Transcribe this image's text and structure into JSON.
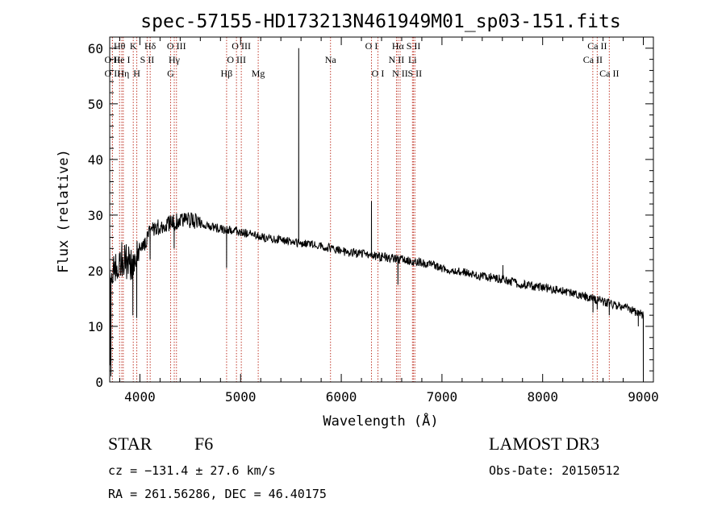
{
  "chart_data": {
    "type": "line",
    "title": "spec-57155-HD173213N461949M01_sp03-151.fits",
    "xlabel": "Wavelength (Å)",
    "ylabel": "Flux (relative)",
    "xlim": [
      3700,
      9100
    ],
    "ylim": [
      0,
      62
    ],
    "xticks": [
      4000,
      5000,
      6000,
      7000,
      8000,
      9000
    ],
    "yticks": [
      0,
      10,
      20,
      30,
      40,
      50,
      60
    ],
    "x_tick_labels": [
      "4000",
      "5000",
      "6000",
      "7000",
      "8000",
      "9000"
    ],
    "y_tick_labels": [
      "0",
      "10",
      "20",
      "30",
      "40",
      "50",
      "60"
    ],
    "grid": false,
    "series": [
      {
        "name": "flux",
        "continuum": [
          [
            3700,
            18
          ],
          [
            3750,
            21
          ],
          [
            3800,
            22
          ],
          [
            3850,
            22
          ],
          [
            3900,
            21
          ],
          [
            3950,
            22
          ],
          [
            4000,
            23
          ],
          [
            4050,
            25
          ],
          [
            4100,
            27
          ],
          [
            4200,
            28
          ],
          [
            4300,
            28.5
          ],
          [
            4400,
            29
          ],
          [
            4500,
            29
          ],
          [
            4600,
            28.5
          ],
          [
            4700,
            28
          ],
          [
            4800,
            27.5
          ],
          [
            5000,
            27
          ],
          [
            5200,
            26
          ],
          [
            5400,
            25.5
          ],
          [
            5600,
            25
          ],
          [
            5800,
            24.5
          ],
          [
            6000,
            23.5
          ],
          [
            6200,
            23
          ],
          [
            6400,
            22.5
          ],
          [
            6600,
            22
          ],
          [
            6800,
            21.5
          ],
          [
            7000,
            20.5
          ],
          [
            7200,
            19.8
          ],
          [
            7400,
            19
          ],
          [
            7600,
            18.5
          ],
          [
            7800,
            17.5
          ],
          [
            8000,
            17
          ],
          [
            8200,
            16.3
          ],
          [
            8400,
            15.5
          ],
          [
            8600,
            14.5
          ],
          [
            8800,
            13.5
          ],
          [
            8950,
            12.5
          ],
          [
            9000,
            12
          ]
        ],
        "features": [
          {
            "x": 3705,
            "y": 3
          },
          {
            "x": 3712,
            "y": 1
          },
          {
            "x": 3930,
            "y": 12
          },
          {
            "x": 3968,
            "y": 11.5
          },
          {
            "x": 4101,
            "y": 22
          },
          {
            "x": 4340,
            "y": 24
          },
          {
            "x": 4861,
            "y": 20.5
          },
          {
            "x": 5577,
            "y": 60
          },
          {
            "x": 6300,
            "y": 32.5
          },
          {
            "x": 6563,
            "y": 17.5
          },
          {
            "x": 7605,
            "y": 21
          },
          {
            "x": 8500,
            "y": 12.5
          },
          {
            "x": 8542,
            "y": 13
          },
          {
            "x": 8662,
            "y": 12
          },
          {
            "x": 8950,
            "y": 10
          },
          {
            "x": 9000,
            "y": 1
          }
        ],
        "noise_seed": 57155
      }
    ],
    "line_markers": [
      {
        "label": "O II",
        "x": 3727,
        "row": 1
      },
      {
        "label": "O II",
        "x": 3727,
        "row": 2
      },
      {
        "label": "Hθ",
        "x": 3798,
        "row": 0
      },
      {
        "label": "He I",
        "x": 3820,
        "row": 1
      },
      {
        "label": "Hη",
        "x": 3835,
        "row": 2
      },
      {
        "label": "K",
        "x": 3934,
        "row": 0
      },
      {
        "label": "S II",
        "x": 4072,
        "row": 1
      },
      {
        "label": "H",
        "x": 3969,
        "row": 2
      },
      {
        "label": "Hδ",
        "x": 4102,
        "row": 0
      },
      {
        "label": "O III",
        "x": 4363,
        "row": 0
      },
      {
        "label": "Hγ",
        "x": 4341,
        "row": 1
      },
      {
        "label": "G",
        "x": 4305,
        "row": 2
      },
      {
        "label": "Hβ",
        "x": 4861,
        "row": 2
      },
      {
        "label": "O III",
        "x": 5007,
        "row": 0
      },
      {
        "label": "O III",
        "x": 4959,
        "row": 1
      },
      {
        "label": "Mg",
        "x": 5175,
        "row": 2
      },
      {
        "label": "Na",
        "x": 5893,
        "row": 1
      },
      {
        "label": "O I",
        "x": 6300,
        "row": 0
      },
      {
        "label": "O I",
        "x": 6364,
        "row": 2
      },
      {
        "label": "Hα",
        "x": 6563,
        "row": 0
      },
      {
        "label": "N II",
        "x": 6548,
        "row": 1
      },
      {
        "label": "N II",
        "x": 6584,
        "row": 2
      },
      {
        "label": "S II",
        "x": 6717,
        "row": 0
      },
      {
        "label": "Li",
        "x": 6707,
        "row": 1
      },
      {
        "label": "S II",
        "x": 6731,
        "row": 2
      },
      {
        "label": "Ca II",
        "x": 8542,
        "row": 0
      },
      {
        "label": "Ca II",
        "x": 8498,
        "row": 1
      },
      {
        "label": "Ca II",
        "x": 8662,
        "row": 2
      }
    ],
    "marker_color": "#c0392b"
  },
  "info": {
    "object_class": "STAR",
    "spectral_type": "F6",
    "survey": "LAMOST DR3",
    "redshift": "cz = −131.4 ± 27.6 km/s",
    "obs_date": "Obs-Date: 20150512",
    "coords": "RA = 261.56286, DEC =  46.40175"
  }
}
